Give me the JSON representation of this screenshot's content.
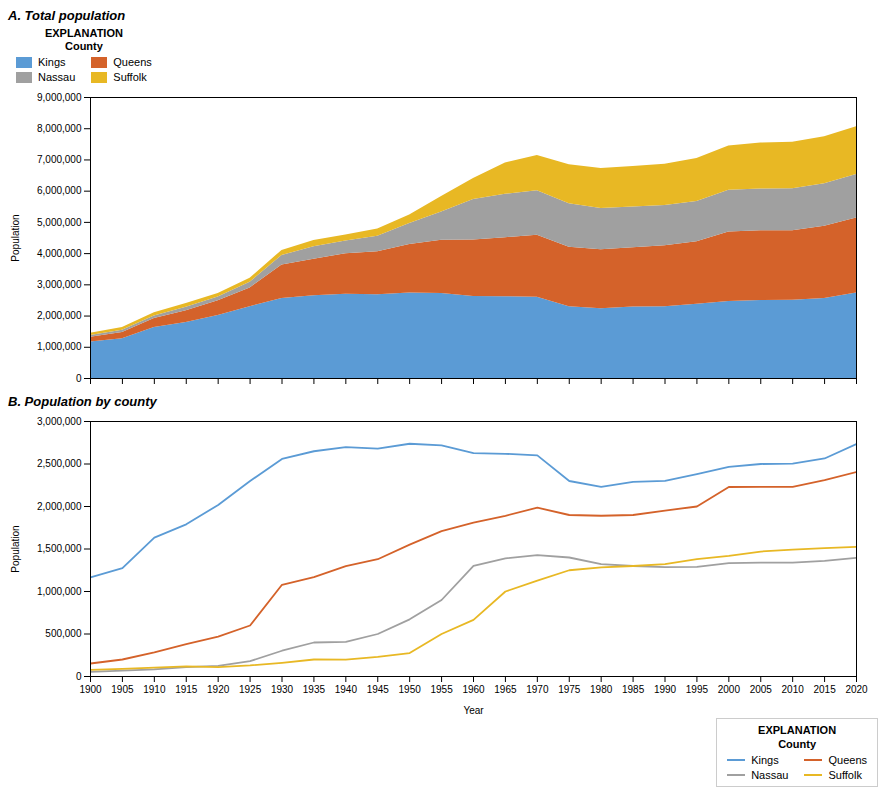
{
  "chart_data": [
    {
      "type": "area",
      "stacked": true,
      "title": "A.  Total population",
      "ylabel": "Population",
      "x": [
        1900,
        1905,
        1910,
        1915,
        1920,
        1925,
        1930,
        1935,
        1940,
        1945,
        1950,
        1955,
        1960,
        1965,
        1970,
        1975,
        1980,
        1985,
        1990,
        1995,
        2000,
        2005,
        2010,
        2015,
        2020
      ],
      "series": [
        {
          "name": "Kings",
          "color": "#5b9bd5",
          "values": [
            1166582,
            1274000,
            1634000,
            1790000,
            2018356,
            2300000,
            2560000,
            2650000,
            2698000,
            2680000,
            2738175,
            2720000,
            2627319,
            2620000,
            2602012,
            2300000,
            2231000,
            2290000,
            2301000,
            2380000,
            2465326,
            2500000,
            2504700,
            2565000,
            2736074
          ]
        },
        {
          "name": "Queens",
          "color": "#d4622a",
          "values": [
            152999,
            200000,
            284041,
            380000,
            469042,
            600000,
            1079129,
            1170000,
            1297634,
            1380000,
            1550849,
            1710000,
            1809578,
            1890000,
            1986473,
            1900000,
            1891325,
            1900000,
            1951598,
            2000000,
            2229379,
            2230000,
            2230722,
            2310000,
            2405464
          ]
        },
        {
          "name": "Nassau",
          "color": "#a0a0a0",
          "values": [
            55448,
            70000,
            83930,
            110000,
            126120,
            180000,
            303053,
            400000,
            406748,
            500000,
            672765,
            900000,
            1300171,
            1390000,
            1428838,
            1400000,
            1321582,
            1300000,
            1287348,
            1290000,
            1334544,
            1340000,
            1339532,
            1360000,
            1395774
          ]
        },
        {
          "name": "Suffolk",
          "color": "#e8b824",
          "values": [
            77582,
            90000,
            104000,
            120000,
            110246,
            130000,
            161055,
            200000,
            197355,
            230000,
            276129,
            500000,
            666784,
            1000000,
            1127030,
            1250000,
            1284231,
            1300000,
            1321864,
            1380000,
            1419369,
            1470000,
            1493350,
            1510000,
            1525920
          ]
        }
      ],
      "xlim": [
        1900,
        2020
      ],
      "xticks": [
        1900,
        1905,
        1910,
        1915,
        1920,
        1925,
        1930,
        1935,
        1940,
        1945,
        1950,
        1955,
        1960,
        1965,
        1970,
        1975,
        1980,
        1985,
        1990,
        1995,
        2000,
        2005,
        2010,
        2015,
        2020
      ],
      "ylim": [
        0,
        9000000
      ],
      "yticks": [
        0,
        {
          "value": 1000000,
          "label": "1,000,000"
        },
        {
          "value": 2000000,
          "label": "2,000,000"
        },
        {
          "value": 3000000,
          "label": "3,000,000"
        },
        {
          "value": 4000000,
          "label": "4,000,000"
        },
        {
          "value": 5000000,
          "label": "5,000,000"
        },
        {
          "value": 6000000,
          "label": "6,000,000"
        },
        {
          "value": 7000000,
          "label": "7,000,000"
        },
        {
          "value": 8000000,
          "label": "8,000,000"
        },
        {
          "value": 9000000,
          "label": "9,000,000"
        }
      ],
      "tick_labels": "y",
      "grid": false,
      "legend": "upper left",
      "legend_title": "EXPLANATION\nCounty"
    },
    {
      "type": "line",
      "title": "B.  Population by county",
      "ylabel": "Population",
      "xlabel": "Year",
      "x": [
        1900,
        1905,
        1910,
        1915,
        1920,
        1925,
        1930,
        1935,
        1940,
        1945,
        1950,
        1955,
        1960,
        1965,
        1970,
        1975,
        1980,
        1985,
        1990,
        1995,
        2000,
        2005,
        2010,
        2015,
        2020
      ],
      "series": [
        {
          "name": "Kings",
          "color": "#5b9bd5",
          "values": [
            1166582,
            1274000,
            1634000,
            1790000,
            2018356,
            2300000,
            2560000,
            2650000,
            2698000,
            2680000,
            2738175,
            2720000,
            2627319,
            2620000,
            2602012,
            2300000,
            2231000,
            2290000,
            2301000,
            2380000,
            2465326,
            2500000,
            2504700,
            2565000,
            2736074
          ]
        },
        {
          "name": "Queens",
          "color": "#d4622a",
          "values": [
            152999,
            200000,
            284041,
            380000,
            469042,
            600000,
            1079129,
            1170000,
            1297634,
            1380000,
            1550849,
            1710000,
            1809578,
            1890000,
            1986473,
            1900000,
            1891325,
            1900000,
            1951598,
            2000000,
            2229379,
            2230000,
            2230722,
            2310000,
            2405464
          ]
        },
        {
          "name": "Nassau",
          "color": "#a0a0a0",
          "values": [
            55448,
            70000,
            83930,
            110000,
            126120,
            180000,
            303053,
            400000,
            406748,
            500000,
            672765,
            900000,
            1300171,
            1390000,
            1428838,
            1400000,
            1321582,
            1300000,
            1287348,
            1290000,
            1334544,
            1340000,
            1339532,
            1360000,
            1395774
          ]
        },
        {
          "name": "Suffolk",
          "color": "#e8b824",
          "values": [
            77582,
            90000,
            104000,
            120000,
            110246,
            130000,
            161055,
            200000,
            197355,
            230000,
            276129,
            500000,
            666784,
            1000000,
            1127030,
            1250000,
            1284231,
            1300000,
            1321864,
            1380000,
            1419369,
            1470000,
            1493350,
            1510000,
            1525920
          ]
        }
      ],
      "xlim": [
        1900,
        2020
      ],
      "xticks": [
        1900,
        1905,
        1910,
        1915,
        1920,
        1925,
        1930,
        1935,
        1940,
        1945,
        1950,
        1955,
        1960,
        1965,
        1970,
        1975,
        1980,
        1985,
        1990,
        1995,
        2000,
        2005,
        2010,
        2015,
        2020
      ],
      "ylim": [
        0,
        3000000
      ],
      "yticks": [
        0,
        {
          "value": 500000,
          "label": "500,000"
        },
        {
          "value": 1000000,
          "label": "1,000,000"
        },
        {
          "value": 1500000,
          "label": "1,500,000"
        },
        {
          "value": 2000000,
          "label": "2,000,000"
        },
        {
          "value": 2500000,
          "label": "2,500,000"
        },
        {
          "value": 3000000,
          "label": "3,000,000"
        }
      ],
      "grid": false,
      "legend": "lower right",
      "legend_title": "EXPLANATION\nCounty"
    }
  ]
}
